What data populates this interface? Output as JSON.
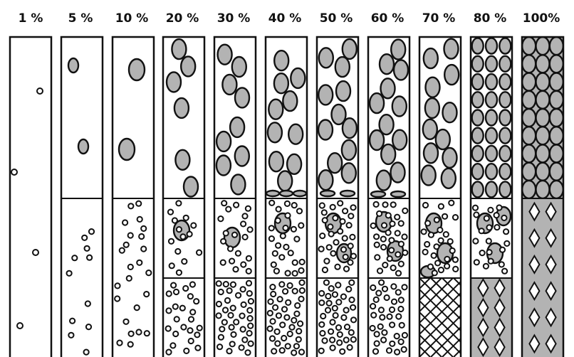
{
  "figure": {
    "columns": [
      {
        "label": "1 %"
      },
      {
        "label": "5 %"
      },
      {
        "label": "10 %"
      },
      {
        "label": "20 %"
      },
      {
        "label": "30 %"
      },
      {
        "label": "40 %"
      },
      {
        "label": "50 %"
      },
      {
        "label": "60 %"
      },
      {
        "label": "70 %"
      },
      {
        "label": "80 %"
      },
      {
        "label": "100%"
      }
    ]
  },
  "colors": {
    "outline": "#111111",
    "particle_fill": "#b3b3b3",
    "background": "#ffffff"
  }
}
